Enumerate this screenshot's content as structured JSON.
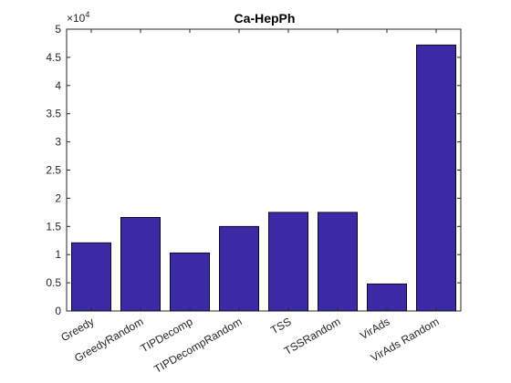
{
  "chart_data": {
    "type": "bar",
    "title": "Ca-HepPh",
    "xlabel": "",
    "ylabel": "",
    "y_exponent_label": "×10",
    "y_exponent_power": "4",
    "categories": [
      "Greedy",
      "GreedyRandom",
      "TIPDecomp",
      "TIPDecompRandom",
      "TSS",
      "TSSRandom",
      "VirAds",
      "VirAds Random"
    ],
    "values": [
      12100,
      16600,
      10300,
      15000,
      17500,
      17500,
      4800,
      47200
    ],
    "y_ticks": [
      "0",
      "0.5",
      "1",
      "1.5",
      "2",
      "2.5",
      "3",
      "3.5",
      "4",
      "4.5",
      "5"
    ],
    "ylim": [
      0,
      50000
    ],
    "grid": false,
    "legend": "none",
    "bar_color": "#3a2aa3"
  }
}
